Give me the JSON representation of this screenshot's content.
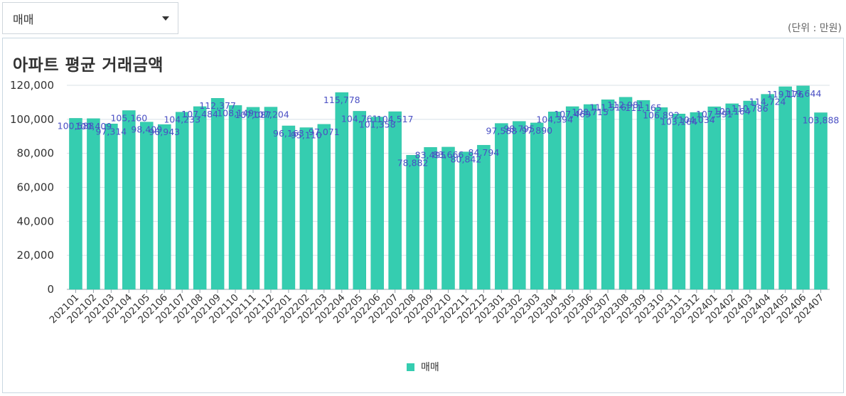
{
  "selector": {
    "value": "매매",
    "icon": "caret-down-icon"
  },
  "unit_note": "(단위 : 만원)",
  "colors": {
    "bar": "#35cdb0",
    "bar_stroke": "#2fbfa3",
    "label": "#4a4fc4",
    "grid": "#d8e0e6",
    "axis": "#9aa5ad"
  },
  "chart_data": {
    "type": "bar",
    "title": "아파트 평균 거래금액",
    "xlabel": "",
    "ylabel": "",
    "ylim": [
      0,
      120000
    ],
    "yticks": [
      "0",
      "20,000",
      "40,000",
      "60,000",
      "80,000",
      "100,000",
      "120,000"
    ],
    "legend": "매매",
    "categories": [
      "202101",
      "202102",
      "202103",
      "202104",
      "202105",
      "202106",
      "202107",
      "202108",
      "202109",
      "202110",
      "202111",
      "202112",
      "202201",
      "202202",
      "202203",
      "202204",
      "202205",
      "202206",
      "202207",
      "202208",
      "202209",
      "202210",
      "202211",
      "202212",
      "202301",
      "202302",
      "202303",
      "202304",
      "202305",
      "202306",
      "202307",
      "202308",
      "202309",
      "202310",
      "202311",
      "202312",
      "202401",
      "202402",
      "202403",
      "202404",
      "202405",
      "202406",
      "202407"
    ],
    "values": [
      100588,
      100409,
      97314,
      105160,
      98409,
      96943,
      104233,
      107484,
      112377,
      108149,
      107087,
      107204,
      96163,
      95110,
      97071,
      115778,
      104761,
      101358,
      104517,
      78882,
      83495,
      83666,
      80842,
      84794,
      97588,
      98795,
      97890,
      104394,
      107469,
      108715,
      111516,
      112981,
      111165,
      106892,
      103164,
      104034,
      107391,
      109164,
      110786,
      114724,
      119176,
      119644,
      103888
    ],
    "labels": [
      "100,588",
      "100,409",
      "97,314",
      "105,160",
      "98,409",
      "96,943",
      "104,233",
      "107,484",
      "112,377",
      "108,149",
      "107,087",
      "107,204",
      "96,163",
      "95,110",
      "97,071",
      "115,778",
      "104,761",
      "101,358",
      "104,517",
      "78,882",
      "83,495",
      "83,666",
      "80,842",
      "84,794",
      "97,588",
      "98,795",
      "97,890",
      "104,394",
      "107,469",
      "108,715",
      "111,516",
      "112,981",
      "111,165",
      "106,892",
      "103,164",
      "104,034",
      "107,391",
      "109,164",
      "110,786",
      "114,724",
      "119,176",
      "119,644",
      "103,888"
    ]
  }
}
